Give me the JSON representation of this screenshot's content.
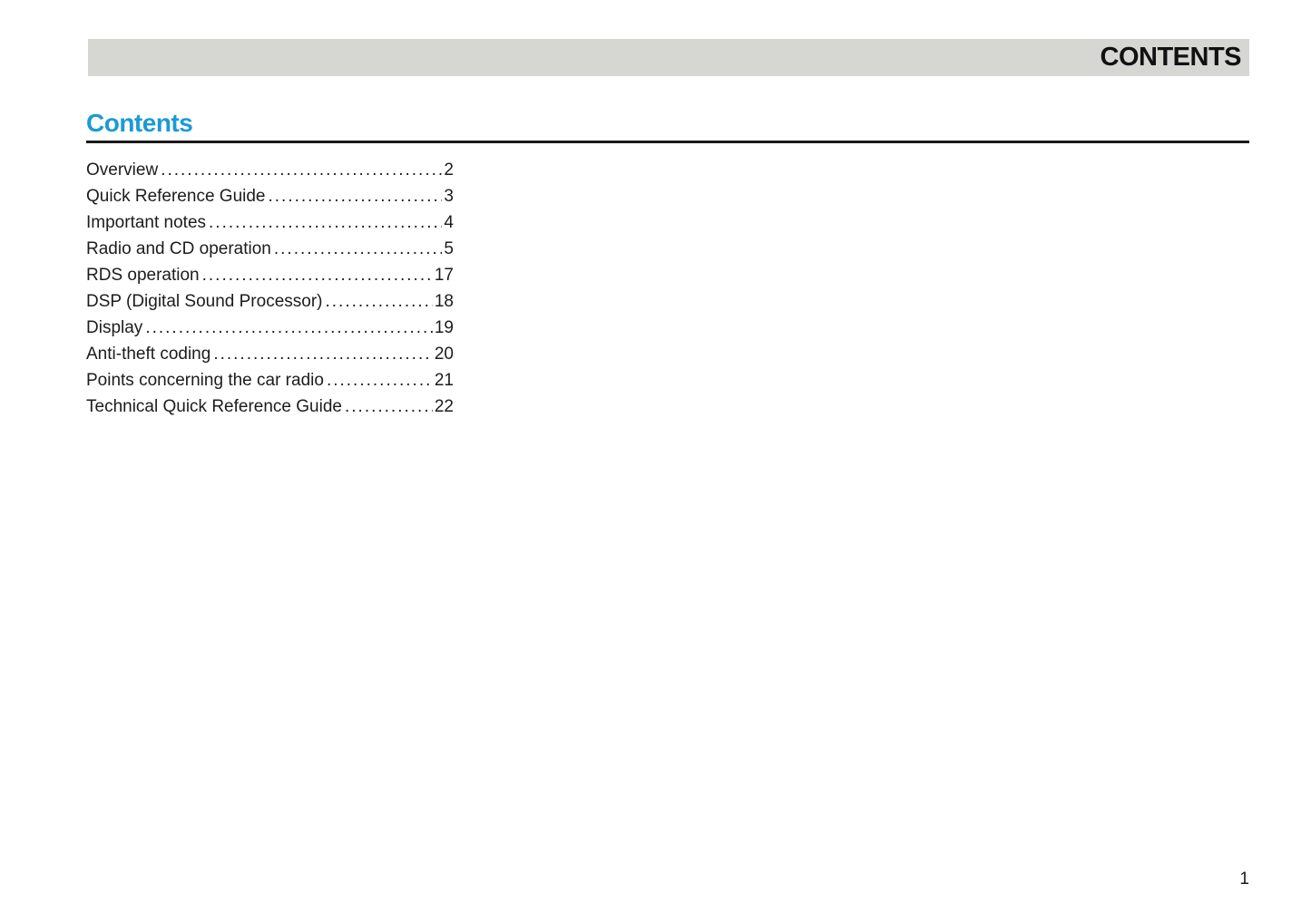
{
  "colors": {
    "accent_blue": "#1a9ad6",
    "header_bar_gray": "#d6d6d3"
  },
  "header": {
    "title": "CONTENTS"
  },
  "section": {
    "heading": "Contents"
  },
  "toc": {
    "items": [
      {
        "label": "Overview",
        "page": "2"
      },
      {
        "label": "Quick Reference Guide",
        "page": "3"
      },
      {
        "label": "Important notes",
        "page": "4"
      },
      {
        "label": "Radio and CD operation",
        "page": "5"
      },
      {
        "label": "RDS operation",
        "page": "17"
      },
      {
        "label": "DSP (Digital Sound Processor)",
        "page": "18"
      },
      {
        "label": "Display",
        "page": "19"
      },
      {
        "label": "Anti-theft coding",
        "page": "20"
      },
      {
        "label": "Points concerning the car radio",
        "page": "21"
      },
      {
        "label": "Technical Quick Reference Guide",
        "page": "22"
      }
    ]
  },
  "footer": {
    "page_number": "1"
  }
}
